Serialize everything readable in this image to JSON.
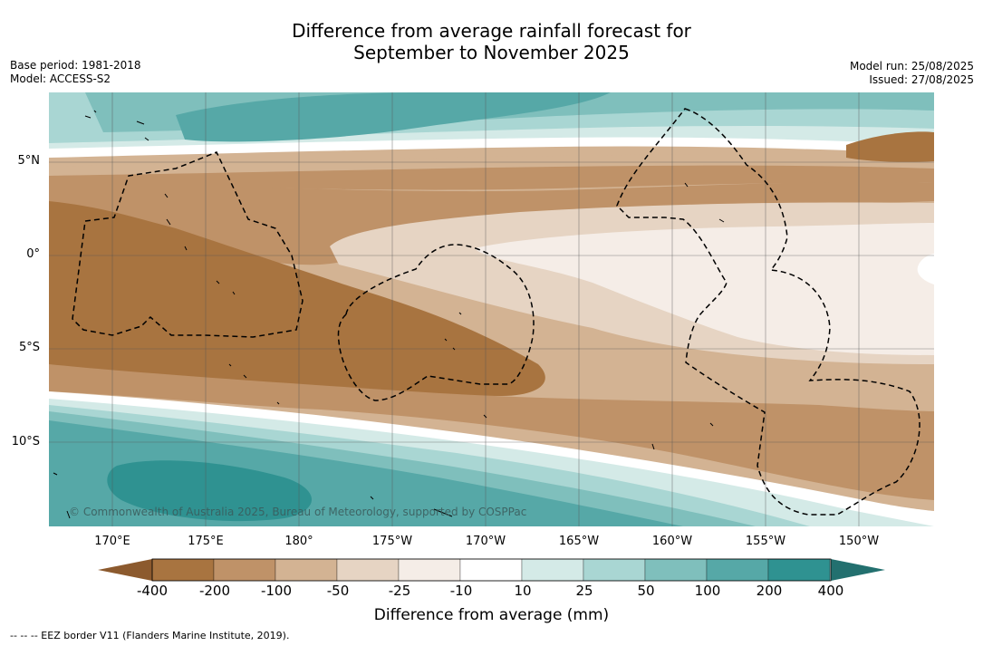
{
  "title_line1": "Difference from average rainfall forecast for",
  "title_line2": "September to November 2025",
  "meta_left": [
    "Base period: 1981-2018",
    "Model: ACCESS-S2"
  ],
  "meta_right": [
    "Model run: 25/08/2025",
    "Issued: 27/08/2025"
  ],
  "lat_labels": [
    "5°N",
    "0°",
    "5°S",
    "10°S"
  ],
  "lon_labels": [
    "170°E",
    "175°E",
    "180°",
    "175°W",
    "170°W",
    "165°W",
    "160°W",
    "155°W",
    "150°W"
  ],
  "copyright": "© Commonwealth of Australia 2025, Bureau of Meteorology, supported by COSPPac",
  "colorbar": {
    "labels": [
      "-400",
      "-200",
      "-100",
      "-50",
      "-25",
      "-10",
      "10",
      "25",
      "50",
      "100",
      "200",
      "400"
    ],
    "colors": [
      "#8c5a2e",
      "#a87440",
      "#bf9268",
      "#d3b393",
      "#e6d4c3",
      "#f5ede7",
      "#ffffff",
      "#d4eae7",
      "#a9d6d3",
      "#7fbfbc",
      "#56a8a7",
      "#2f9291",
      "#23706f"
    ],
    "title": "Difference from average (mm)"
  },
  "footer": "--  --  -- EEZ border V11 (Flanders Marine Institute, 2019)."
}
